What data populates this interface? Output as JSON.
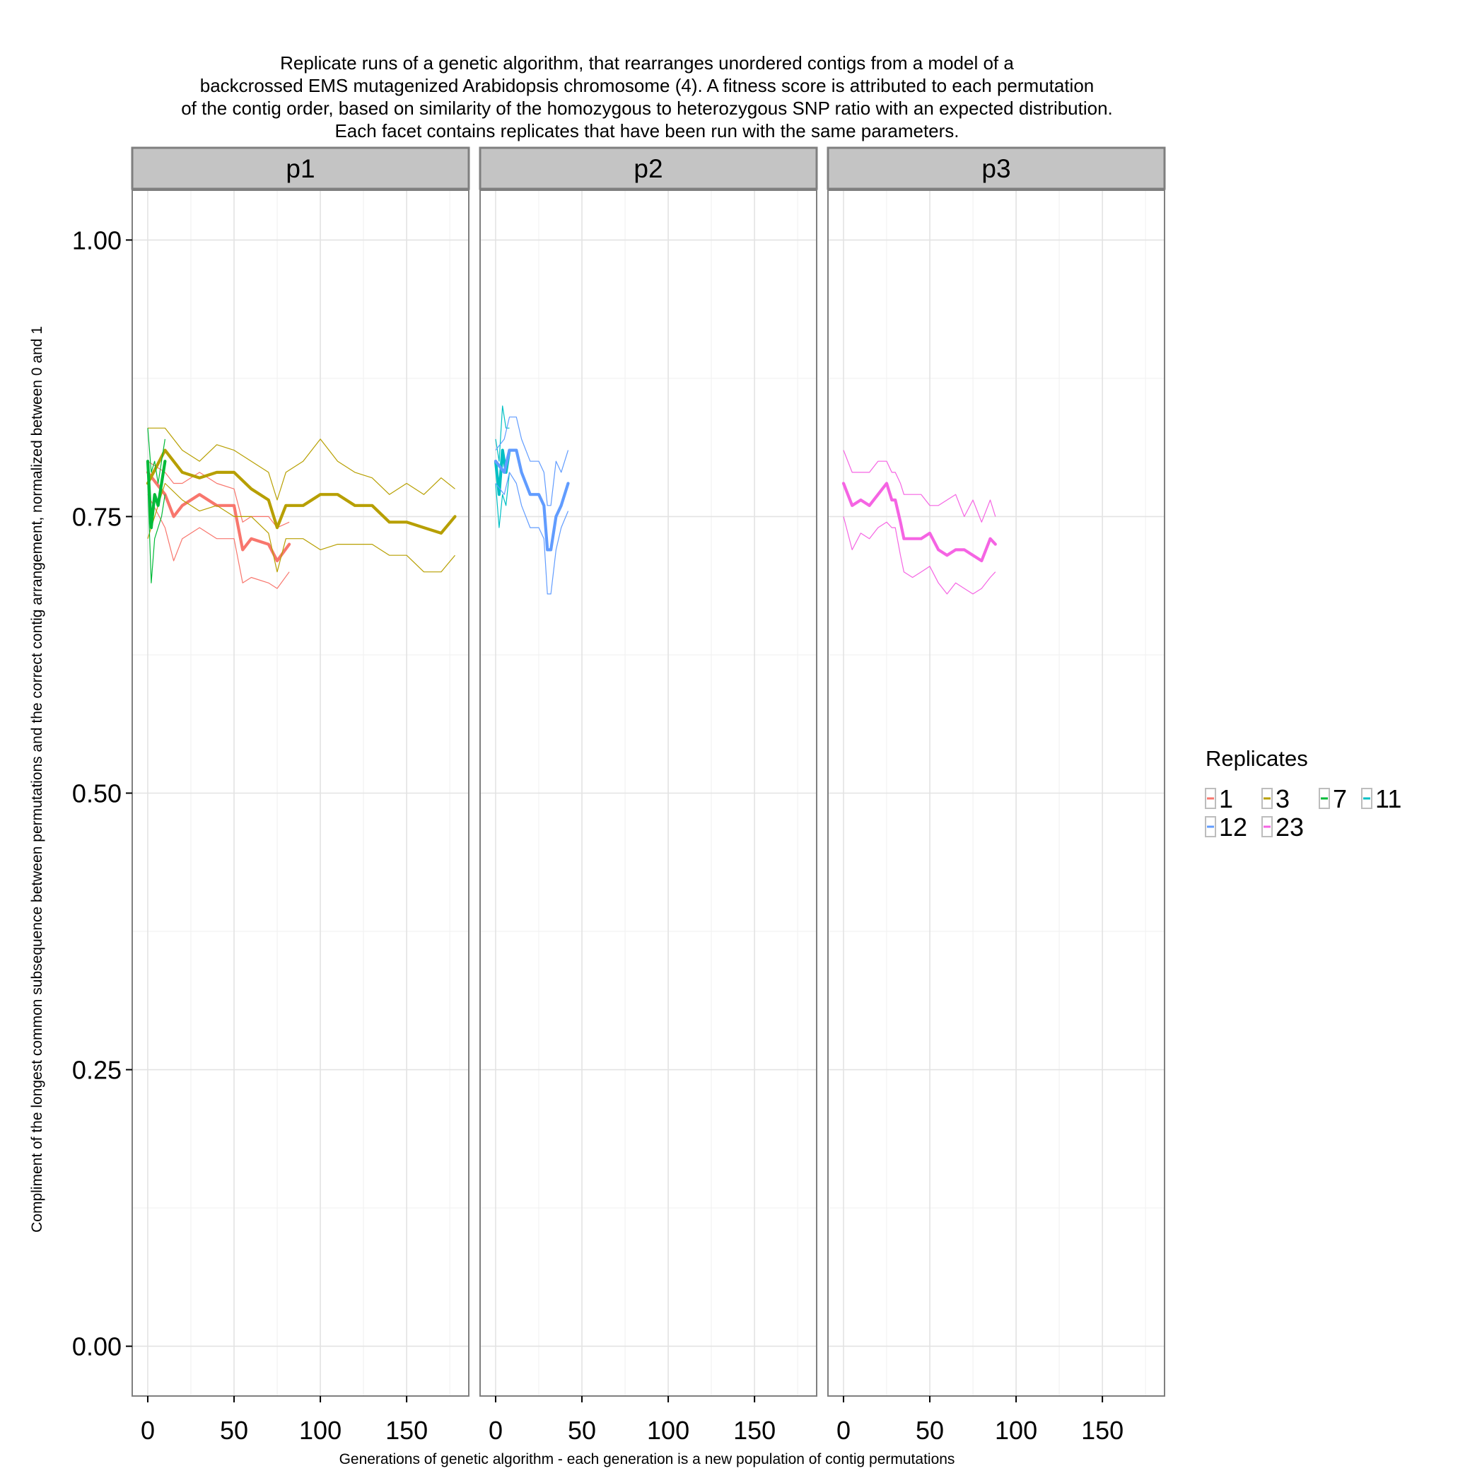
{
  "chart_data": {
    "type": "line",
    "title_lines": [
      "Replicate runs of a genetic algorithm, that rearranges unordered contigs from a model of a",
      "backcrossed EMS mutagenized Arabidopsis chromosome (4). A fitness score is attributed to each permutation",
      "of the contig order, based on similarity of the homozygous to heterozygous SNP ratio with an expected distribution.",
      "Each facet contains replicates that have been run with the same parameters."
    ],
    "xlabel": "Generations of genetic algorithm - each generation is a new population of contig permutations",
    "ylabel": "Compliment of the longest common subsequence between permutations and the correct contig arrangement, normalized between 0 and 1",
    "xlim": [
      -9,
      186
    ],
    "ylim": [
      -0.045,
      1.045
    ],
    "x_ticks": [
      0,
      50,
      100,
      150
    ],
    "y_ticks": [
      0,
      0.25,
      0.5,
      0.75,
      1.0
    ],
    "y_tick_labels": [
      "0.00",
      "0.25",
      "0.50",
      "0.75",
      "1.00"
    ],
    "grid": true,
    "legend": {
      "title": "Replicates",
      "placement": "right",
      "entries": [
        {
          "label": "1",
          "color": "#F8766D"
        },
        {
          "label": "3",
          "color": "#B79F00"
        },
        {
          "label": "7",
          "color": "#00BA38"
        },
        {
          "label": "11",
          "color": "#00BFC4"
        },
        {
          "label": "12",
          "color": "#619CFF"
        },
        {
          "label": "23",
          "color": "#F564E3"
        }
      ]
    },
    "facets": [
      {
        "label": "p1",
        "series": [
          {
            "name": "1",
            "color": "#F8766D",
            "x": [
              0,
              10,
              15,
              20,
              30,
              40,
              50,
              55,
              60,
              70,
              75,
              82
            ],
            "mean": [
              0.79,
              0.77,
              0.75,
              0.76,
              0.77,
              0.76,
              0.76,
              0.72,
              0.73,
              0.725,
              0.71,
              0.725
            ],
            "upper": [
              0.8,
              0.79,
              0.78,
              0.78,
              0.79,
              0.78,
              0.775,
              0.745,
              0.75,
              0.75,
              0.74,
              0.745
            ],
            "lower": [
              0.77,
              0.74,
              0.71,
              0.73,
              0.74,
              0.73,
              0.73,
              0.69,
              0.695,
              0.69,
              0.685,
              0.7
            ]
          },
          {
            "name": "3",
            "color": "#B79F00",
            "x": [
              0,
              10,
              20,
              30,
              40,
              50,
              60,
              70,
              75,
              80,
              90,
              100,
              110,
              120,
              130,
              140,
              150,
              160,
              170,
              178
            ],
            "mean": [
              0.78,
              0.81,
              0.79,
              0.785,
              0.79,
              0.79,
              0.775,
              0.765,
              0.74,
              0.76,
              0.76,
              0.77,
              0.77,
              0.76,
              0.76,
              0.745,
              0.745,
              0.74,
              0.735,
              0.75
            ],
            "upper": [
              0.83,
              0.83,
              0.81,
              0.8,
              0.815,
              0.81,
              0.8,
              0.79,
              0.765,
              0.79,
              0.8,
              0.82,
              0.8,
              0.79,
              0.785,
              0.77,
              0.78,
              0.77,
              0.785,
              0.775
            ],
            "lower": [
              0.73,
              0.78,
              0.765,
              0.755,
              0.76,
              0.75,
              0.75,
              0.735,
              0.7,
              0.73,
              0.73,
              0.72,
              0.725,
              0.725,
              0.725,
              0.715,
              0.715,
              0.7,
              0.7,
              0.715
            ]
          },
          {
            "name": "7",
            "color": "#00BA38",
            "x": [
              0,
              2,
              4,
              6,
              8,
              10
            ],
            "mean": [
              0.8,
              0.74,
              0.77,
              0.76,
              0.78,
              0.8
            ],
            "upper": [
              0.83,
              0.79,
              0.8,
              0.78,
              0.8,
              0.82
            ],
            "lower": [
              0.78,
              0.69,
              0.73,
              0.74,
              0.75,
              0.77
            ]
          }
        ]
      },
      {
        "label": "p2",
        "series": [
          {
            "name": "11",
            "color": "#00BFC4",
            "x": [
              0,
              2,
              4,
              6,
              8
            ],
            "mean": [
              0.8,
              0.77,
              0.81,
              0.79,
              0.81
            ],
            "upper": [
              0.82,
              0.8,
              0.85,
              0.83,
              0.83
            ],
            "lower": [
              0.78,
              0.74,
              0.77,
              0.76,
              0.79
            ]
          },
          {
            "name": "12",
            "color": "#619CFF",
            "x": [
              0,
              5,
              8,
              12,
              15,
              20,
              25,
              28,
              30,
              32,
              35,
              38,
              42
            ],
            "mean": [
              0.8,
              0.79,
              0.81,
              0.81,
              0.79,
              0.77,
              0.77,
              0.76,
              0.72,
              0.72,
              0.75,
              0.76,
              0.78
            ],
            "upper": [
              0.81,
              0.82,
              0.84,
              0.84,
              0.82,
              0.8,
              0.8,
              0.79,
              0.76,
              0.76,
              0.8,
              0.79,
              0.81
            ],
            "lower": [
              0.78,
              0.77,
              0.79,
              0.78,
              0.76,
              0.74,
              0.74,
              0.73,
              0.68,
              0.68,
              0.72,
              0.74,
              0.755
            ]
          }
        ]
      },
      {
        "label": "p3",
        "series": [
          {
            "name": "23",
            "color": "#F564E3",
            "x": [
              0,
              5,
              10,
              15,
              20,
              25,
              28,
              30,
              33,
              35,
              40,
              45,
              50,
              55,
              60,
              65,
              70,
              75,
              80,
              85,
              88
            ],
            "mean": [
              0.78,
              0.76,
              0.765,
              0.76,
              0.77,
              0.78,
              0.765,
              0.765,
              0.745,
              0.73,
              0.73,
              0.73,
              0.735,
              0.72,
              0.715,
              0.72,
              0.72,
              0.715,
              0.71,
              0.73,
              0.725
            ],
            "upper": [
              0.81,
              0.79,
              0.79,
              0.79,
              0.8,
              0.8,
              0.79,
              0.79,
              0.78,
              0.77,
              0.77,
              0.77,
              0.76,
              0.76,
              0.765,
              0.77,
              0.75,
              0.765,
              0.745,
              0.765,
              0.75
            ],
            "lower": [
              0.75,
              0.72,
              0.735,
              0.73,
              0.74,
              0.745,
              0.74,
              0.74,
              0.715,
              0.7,
              0.695,
              0.7,
              0.705,
              0.69,
              0.68,
              0.69,
              0.685,
              0.68,
              0.685,
              0.695,
              0.7
            ]
          }
        ]
      }
    ]
  }
}
